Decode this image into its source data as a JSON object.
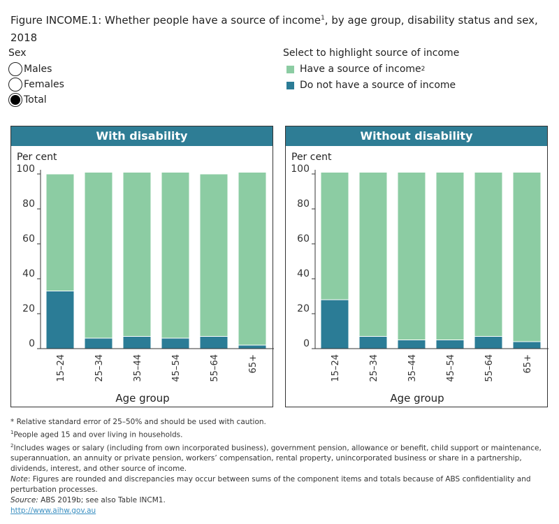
{
  "title": "Figure INCOME.1: Whether people have a source of income",
  "title_sup": "1",
  "title_rest": ", by age group, disability status and sex, 2018",
  "sex_filter": {
    "label": "Sex",
    "options": [
      "Males",
      "Females",
      "Total"
    ],
    "selected": "Total"
  },
  "legend": {
    "label": "Select to highlight source of income",
    "items": [
      {
        "label": "Have a source of income",
        "sup": "2",
        "color": "#8ccca3"
      },
      {
        "label": "Do not have a source of income",
        "color": "#2b7c96"
      }
    ]
  },
  "chart_data": [
    {
      "type": "bar",
      "stacked": true,
      "title": "With disability",
      "ylabel": "Per cent",
      "xlabel": "Age group",
      "ylim": [
        0,
        100
      ],
      "yticks": [
        0,
        20,
        40,
        60,
        80,
        100
      ],
      "categories": [
        "15–24",
        "25–34",
        "35–44",
        "45–54",
        "55–64",
        "65+"
      ],
      "series": [
        {
          "name": "Do not have a source of income",
          "color": "#2b7c96",
          "values": [
            33,
            6,
            7,
            6,
            7,
            2
          ]
        },
        {
          "name": "Have a source of income",
          "color": "#8ccca3",
          "values": [
            67,
            95,
            94,
            95,
            93,
            99
          ]
        }
      ]
    },
    {
      "type": "bar",
      "stacked": true,
      "title": "Without disability",
      "ylabel": "Per cent",
      "xlabel": "Age group",
      "ylim": [
        0,
        100
      ],
      "yticks": [
        0,
        20,
        40,
        60,
        80,
        100
      ],
      "categories": [
        "15–24",
        "25–34",
        "35–44",
        "45–54",
        "55–64",
        "65+"
      ],
      "series": [
        {
          "name": "Do not have a source of income",
          "color": "#2b7c96",
          "values": [
            28,
            7,
            5,
            5,
            7,
            4
          ]
        },
        {
          "name": "Have a source of income",
          "color": "#8ccca3",
          "values": [
            73,
            94,
            96,
            96,
            94,
            97
          ]
        }
      ]
    }
  ],
  "notes": {
    "rse": "* Relative standard error of 25–50% and should be used with caution.",
    "n1": "People aged 15 and over living in households.",
    "n2": "Includes wages or salary (including from own incorporated business), government pension, allowance or benefit, child support or maintenance, superannuation, an annuity or private pension, workers’ compensation, rental property, unincorporated business or share in a partnership, dividends, interest, and other source of income.",
    "note_label": "Note",
    "note": ": Figures are rounded and discrepancies may occur between sums of the component items and totals because of ABS confidentiality and perturbation processes.",
    "source_label": "Source:",
    "source": " ABS 2019b; see also Table INCM1.",
    "link": "http://www.aihw.gov.au"
  }
}
